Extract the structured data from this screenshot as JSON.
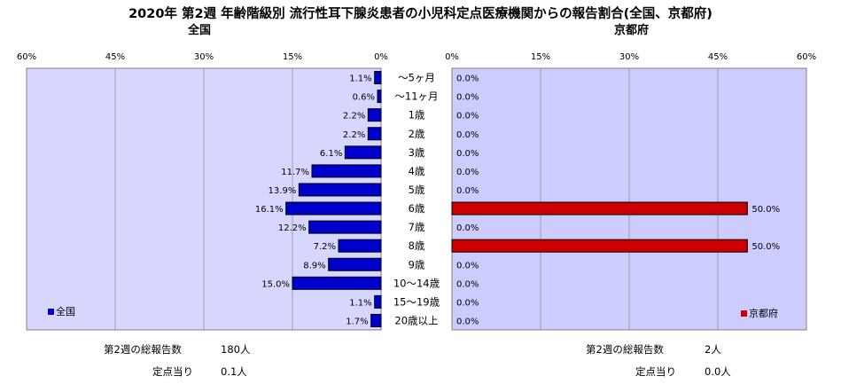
{
  "title": "2020年 第2週 年齢階級別 流行性耳下腺炎患者の小児科定点医療機関からの報告割合(全国、京都府)",
  "colors": {
    "national": "#0000cc",
    "kyoto": "#cc0000",
    "national_plot_bg": "#d6d6ff",
    "kyoto_plot_bg": "#ccccff"
  },
  "chart_data": [
    {
      "type": "bar",
      "title": "全国",
      "orientation": "horizontal",
      "x_direction": "reversed",
      "xlim": [
        0,
        60
      ],
      "xticks": [
        "60%",
        "45%",
        "30%",
        "15%",
        "0%"
      ],
      "categories": [
        "～5ヶ月",
        "～11ヶ月",
        "1歳",
        "2歳",
        "3歳",
        "4歳",
        "5歳",
        "6歳",
        "7歳",
        "8歳",
        "9歳",
        "10～14歳",
        "15～19歳",
        "20歳以上"
      ],
      "series": [
        {
          "name": "全国",
          "values": [
            1.1,
            0.6,
            2.2,
            2.2,
            6.1,
            11.7,
            13.9,
            16.1,
            12.2,
            7.2,
            8.9,
            15.0,
            1.1,
            1.7
          ],
          "labels": [
            "1.1%",
            "0.6%",
            "2.2%",
            "2.2%",
            "6.1%",
            "11.7%",
            "13.9%",
            "16.1%",
            "12.2%",
            "7.2%",
            "8.9%",
            "15.0%",
            "1.1%",
            "1.7%"
          ]
        }
      ],
      "legend": "bottom-left",
      "grid": true
    },
    {
      "type": "bar",
      "title": "京都府",
      "orientation": "horizontal",
      "xlim": [
        0,
        60
      ],
      "xticks": [
        "0%",
        "15%",
        "30%",
        "45%",
        "60%"
      ],
      "categories": [
        "～5ヶ月",
        "～11ヶ月",
        "1歳",
        "2歳",
        "3歳",
        "4歳",
        "5歳",
        "6歳",
        "7歳",
        "8歳",
        "9歳",
        "10～14歳",
        "15～19歳",
        "20歳以上"
      ],
      "series": [
        {
          "name": "京都府",
          "values": [
            0,
            0,
            0,
            0,
            0,
            0,
            0,
            50.0,
            0,
            50.0,
            0,
            0,
            0,
            0
          ],
          "labels": [
            "0.0%",
            "0.0%",
            "0.0%",
            "0.0%",
            "0.0%",
            "0.0%",
            "0.0%",
            "50.0%",
            "0.0%",
            "50.0%",
            "0.0%",
            "0.0%",
            "0.0%",
            "0.0%"
          ]
        }
      ],
      "legend": "bottom-right",
      "grid": true
    }
  ],
  "footer": {
    "national": {
      "total_label": "第2週の総報告数",
      "total_value": "180人",
      "per_label": "定点当り",
      "per_value": "0.1人"
    },
    "kyoto": {
      "total_label": "第2週の総報告数",
      "total_value": "2人",
      "per_label": "定点当り",
      "per_value": "0.0人"
    }
  }
}
